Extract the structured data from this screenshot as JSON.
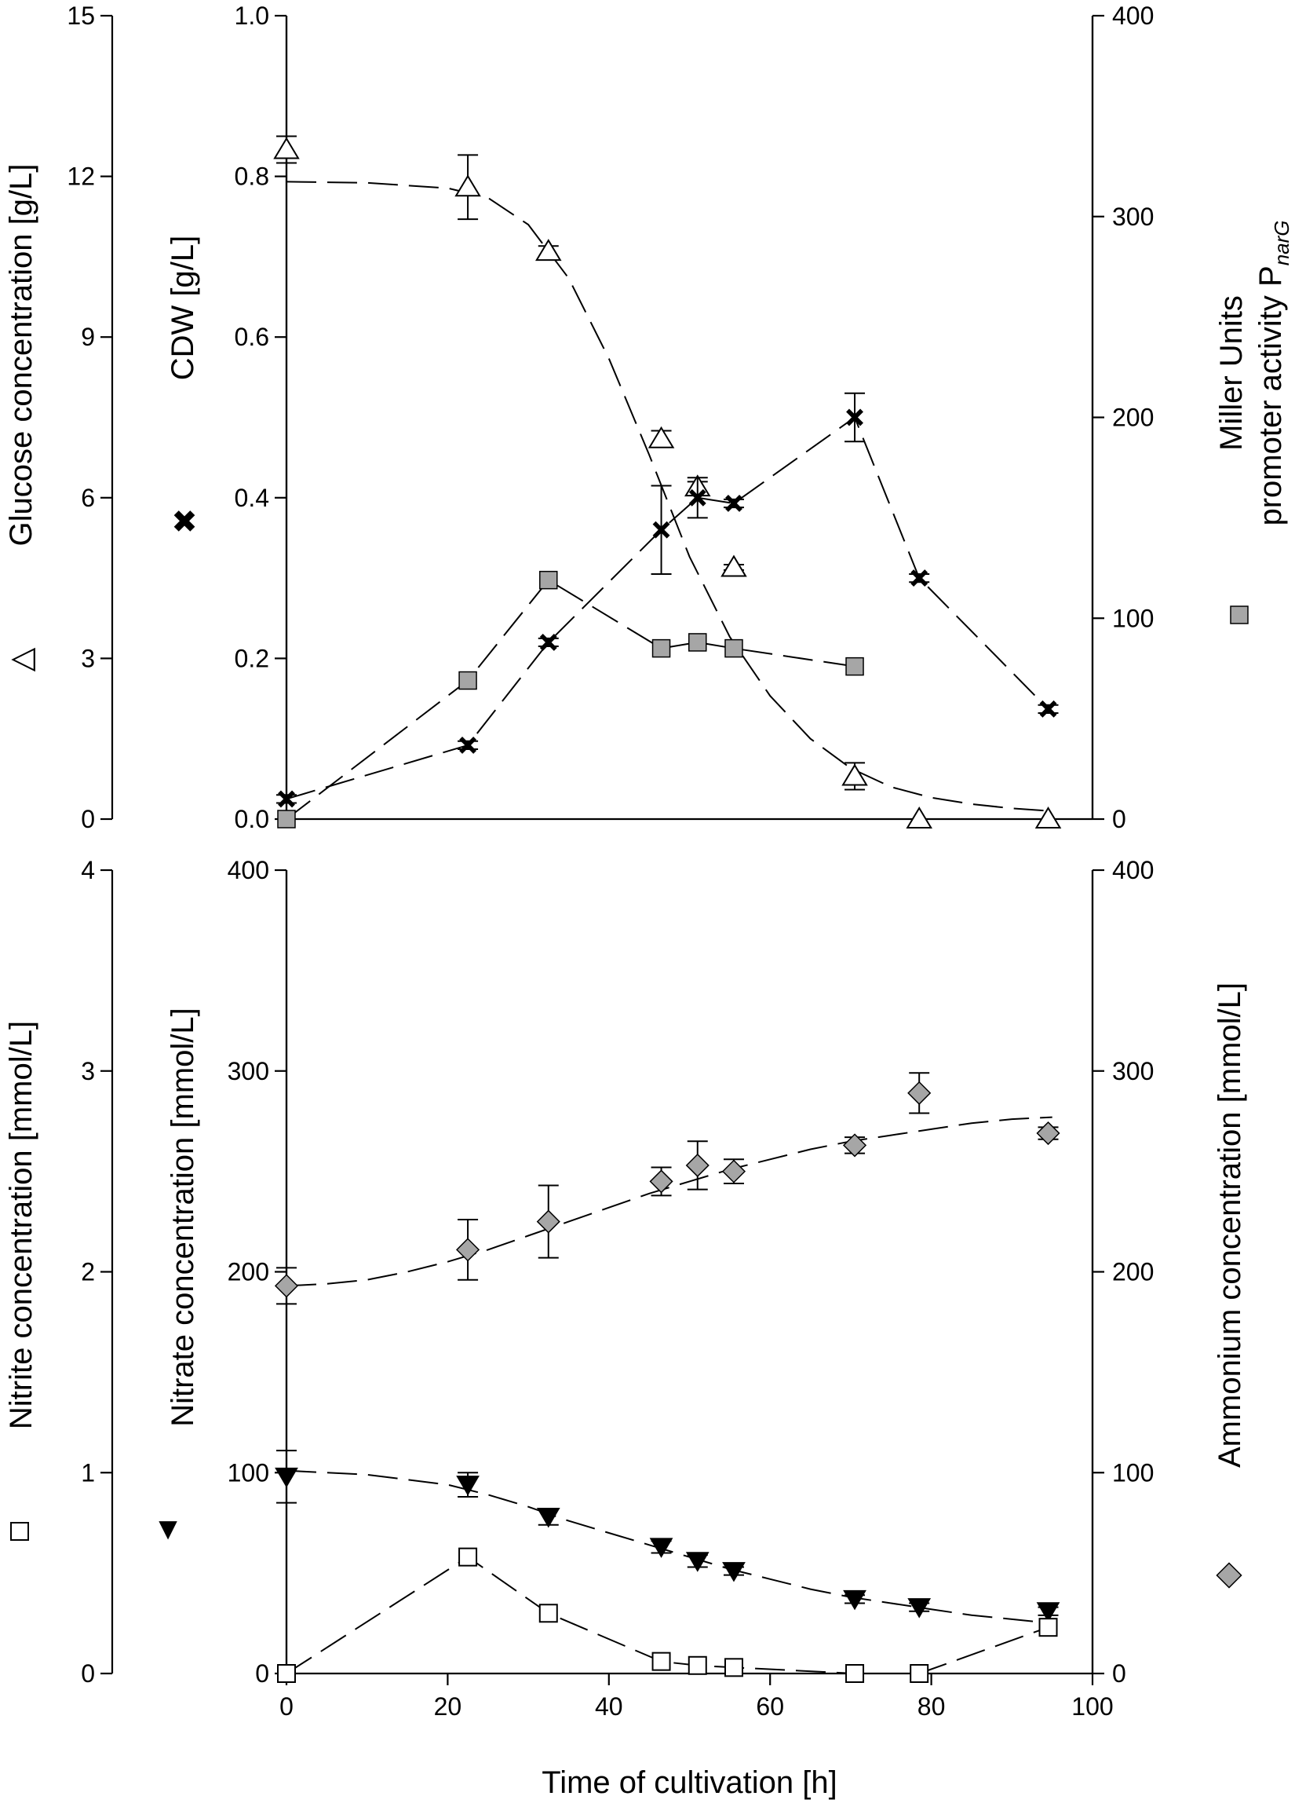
{
  "chart_data": [
    {
      "type": "scatter",
      "panel": "top",
      "xlim": [
        0,
        100
      ],
      "axes": {
        "glucose": {
          "label": "Glucose concentration [g/L]",
          "legend_symbol": "△",
          "ylim": [
            0,
            15
          ],
          "ticks": [
            "0",
            "3",
            "6",
            "9",
            "12",
            "15"
          ]
        },
        "cdw": {
          "label": "CDW  [g/L]",
          "legend_symbol": "✖",
          "ylim": [
            0,
            1
          ],
          "ticks": [
            "0.0",
            "0.2",
            "0.4",
            "0.6",
            "0.8",
            "1.0"
          ]
        },
        "miller": {
          "label_line1": "Miller Units",
          "label_line2": "promoter activity P",
          "label_sub": "narG",
          "legend_symbol": "■",
          "ylim": [
            0,
            400
          ],
          "ticks": [
            "0",
            "100",
            "200",
            "300",
            "400"
          ]
        }
      },
      "series": [
        {
          "name": "Glucose",
          "axis": "glucose",
          "marker": "triangle-open",
          "x": [
            0,
            22.5,
            32.5,
            46.5,
            51,
            55.5,
            70.5,
            78.5,
            94.5
          ],
          "y": [
            12.5,
            11.8,
            10.6,
            7.1,
            6.2,
            4.7,
            0.8,
            0.0,
            0.0
          ],
          "err": [
            0.25,
            0.6,
            0.1,
            0.15,
            0.1,
            0.05,
            0.25,
            0.0,
            0.0
          ],
          "fit_x": [
            0,
            10,
            20,
            25,
            30,
            35,
            40,
            45,
            50,
            55,
            60,
            65,
            70,
            75,
            80,
            85,
            90,
            95
          ],
          "fit_y": [
            11.9,
            11.88,
            11.78,
            11.6,
            11.1,
            10.1,
            8.6,
            6.8,
            4.9,
            3.4,
            2.3,
            1.5,
            0.95,
            0.6,
            0.4,
            0.28,
            0.2,
            0.15
          ]
        },
        {
          "name": "CDW",
          "axis": "cdw",
          "marker": "cross",
          "x": [
            0,
            22.5,
            32.5,
            46.5,
            51,
            55.5,
            70.5,
            78.5,
            94.5
          ],
          "y": [
            0.025,
            0.092,
            0.22,
            0.36,
            0.4,
            0.393,
            0.5,
            0.3,
            0.137
          ],
          "err": [
            0.005,
            0.005,
            0.005,
            0.055,
            0.025,
            0.005,
            0.03,
            0.005,
            0.005
          ],
          "fit_x": [
            0,
            22.5,
            32.5,
            46.5,
            51,
            55.5,
            70.5,
            78.5,
            94.5
          ],
          "fit_y": [
            0.025,
            0.092,
            0.22,
            0.36,
            0.4,
            0.393,
            0.5,
            0.3,
            0.137
          ]
        },
        {
          "name": "Miller Units",
          "axis": "miller",
          "marker": "square-gray",
          "x": [
            0,
            22.5,
            32.5,
            46.5,
            51,
            55.5,
            70.5
          ],
          "y": [
            0,
            69,
            119,
            85,
            88,
            85,
            76
          ],
          "fit_x": [
            0,
            22.5,
            32.5,
            46.5,
            51,
            55.5,
            70.5
          ],
          "fit_y": [
            0,
            69,
            119,
            85,
            88,
            85,
            76
          ]
        }
      ]
    },
    {
      "type": "scatter",
      "panel": "bottom",
      "xlim": [
        0,
        100
      ],
      "xlabel": "Time of cultivation [h]",
      "xticks": [
        "0",
        "20",
        "40",
        "60",
        "80",
        "100"
      ],
      "axes": {
        "nitrite": {
          "label": "Nitrite concentration [mmol/L]",
          "legend_symbol": "□",
          "ylim": [
            0,
            4
          ],
          "ticks": [
            "0",
            "1",
            "2",
            "3",
            "4"
          ]
        },
        "nitrate": {
          "label": "Nitrate concentration [mmol/L]",
          "legend_symbol": "▼",
          "ylim": [
            0,
            400
          ],
          "ticks": [
            "0",
            "100",
            "200",
            "300",
            "400"
          ]
        },
        "ammonium": {
          "label": "Ammonium concentration [mmol/L]",
          "legend_symbol": "◆",
          "ylim": [
            0,
            400
          ],
          "ticks": [
            "0",
            "100",
            "200",
            "300",
            "400"
          ]
        }
      },
      "series": [
        {
          "name": "Ammonium",
          "axis": "ammonium",
          "marker": "diamond-gray",
          "x": [
            0,
            22.5,
            32.5,
            46.5,
            51,
            55.5,
            70.5,
            78.5,
            94.5
          ],
          "y": [
            193,
            211,
            225,
            245,
            253,
            250,
            263,
            289,
            269
          ],
          "err": [
            9,
            15,
            18,
            7,
            12,
            6,
            4,
            10,
            3
          ],
          "fit_x": [
            0,
            5,
            10,
            15,
            20,
            25,
            30,
            35,
            40,
            45,
            50,
            55,
            60,
            65,
            70,
            75,
            80,
            85,
            90,
            95
          ],
          "fit_y": [
            193,
            194,
            196,
            200,
            205,
            211,
            218,
            225,
            232,
            239,
            245,
            251,
            256,
            261,
            265,
            268,
            271,
            274,
            276,
            277
          ]
        },
        {
          "name": "Nitrate",
          "axis": "nitrate",
          "marker": "triangle-down-black",
          "x": [
            0,
            22.5,
            32.5,
            46.5,
            51,
            55.5,
            70.5,
            78.5,
            94.5
          ],
          "y": [
            98,
            94,
            78,
            63,
            56,
            51,
            37,
            33,
            31
          ],
          "err": [
            13,
            6,
            4,
            3,
            3,
            2,
            2,
            2,
            2
          ],
          "fit_x": [
            0,
            10,
            20,
            25,
            30,
            35,
            40,
            45,
            50,
            55,
            60,
            65,
            70,
            75,
            80,
            85,
            90,
            95
          ],
          "fit_y": [
            101,
            99,
            94,
            89,
            83,
            76,
            70,
            64,
            58,
            52,
            47,
            42,
            38,
            35,
            32,
            29,
            27,
            25
          ]
        },
        {
          "name": "Nitrite",
          "axis": "nitrite",
          "marker": "square-open",
          "x": [
            0,
            22.5,
            32.5,
            46.5,
            51,
            55.5,
            70.5,
            78.5,
            94.5
          ],
          "y": [
            0.0,
            0.58,
            0.3,
            0.06,
            0.04,
            0.03,
            0.0,
            0.0,
            0.23
          ],
          "fit_x": [
            0,
            22.5,
            32.5,
            46.5,
            51,
            55.5,
            70.5,
            78.5,
            94.5
          ],
          "fit_y": [
            0.0,
            0.58,
            0.3,
            0.06,
            0.04,
            0.03,
            0.0,
            0.0,
            0.23
          ]
        }
      ]
    }
  ]
}
